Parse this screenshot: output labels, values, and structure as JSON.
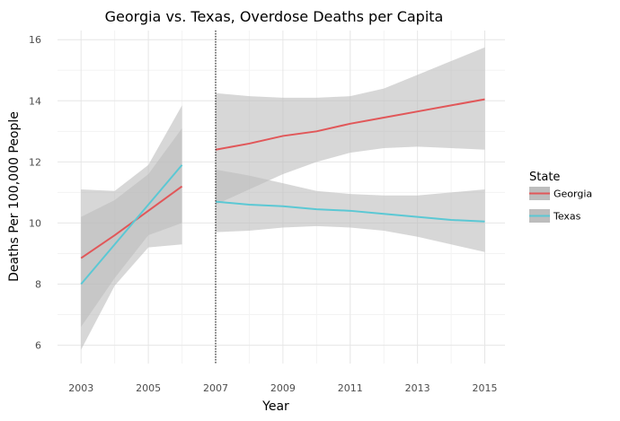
{
  "chart_data": {
    "type": "line",
    "title": "Georgia vs. Texas, Overdose Deaths per Capita",
    "xlabel": "Year",
    "ylabel": "Deaths Per 100,000 People",
    "xlim": [
      2002.3,
      2015.6
    ],
    "ylim": [
      5.4,
      16.3
    ],
    "x_ticks": [
      "2003",
      "2005",
      "2007",
      "2009",
      "2011",
      "2013",
      "2015"
    ],
    "x_tick_values": [
      2003,
      2005,
      2007,
      2009,
      2011,
      2013,
      2015
    ],
    "y_ticks": [
      "6",
      "8",
      "10",
      "12",
      "14",
      "16"
    ],
    "y_tick_values": [
      6,
      8,
      10,
      12,
      14,
      16
    ],
    "grid": true,
    "vline_x": 2007,
    "legend": {
      "title": "State",
      "position": "right"
    },
    "band_color": "#bdbdbd",
    "series": [
      {
        "name": "Georgia",
        "color": "#e15759",
        "segments": [
          {
            "x": [
              2003,
              2004,
              2005,
              2006
            ],
            "y": [
              8.85,
              9.6,
              10.4,
              11.2
            ],
            "lower": [
              6.6,
              8.2,
              9.6,
              10.0
            ],
            "upper": [
              10.2,
              10.75,
              11.6,
              13.1
            ]
          },
          {
            "x": [
              2007,
              2008,
              2009,
              2010,
              2011,
              2012,
              2013,
              2014,
              2015
            ],
            "y": [
              12.4,
              12.6,
              12.85,
              13.0,
              13.25,
              13.45,
              13.65,
              13.85,
              14.05
            ],
            "lower": [
              10.6,
              11.1,
              11.6,
              12.0,
              12.3,
              12.45,
              12.5,
              12.45,
              12.4
            ],
            "upper": [
              14.25,
              14.15,
              14.1,
              14.1,
              14.15,
              14.4,
              14.85,
              15.3,
              15.75
            ]
          }
        ]
      },
      {
        "name": "Texas",
        "color": "#5bc8d4",
        "segments": [
          {
            "x": [
              2003,
              2004,
              2005,
              2006
            ],
            "y": [
              8.0,
              9.3,
              10.6,
              11.9
            ],
            "lower": [
              5.85,
              7.95,
              9.2,
              9.3
            ],
            "upper": [
              11.1,
              11.05,
              11.9,
              13.85
            ]
          },
          {
            "x": [
              2007,
              2008,
              2009,
              2010,
              2011,
              2012,
              2013,
              2014,
              2015
            ],
            "y": [
              10.7,
              10.6,
              10.55,
              10.45,
              10.4,
              10.3,
              10.2,
              10.1,
              10.05
            ],
            "lower": [
              9.7,
              9.75,
              9.85,
              9.9,
              9.85,
              9.75,
              9.55,
              9.3,
              9.05
            ],
            "upper": [
              11.75,
              11.55,
              11.3,
              11.05,
              10.95,
              10.9,
              10.9,
              11.0,
              11.1
            ]
          }
        ]
      }
    ]
  }
}
